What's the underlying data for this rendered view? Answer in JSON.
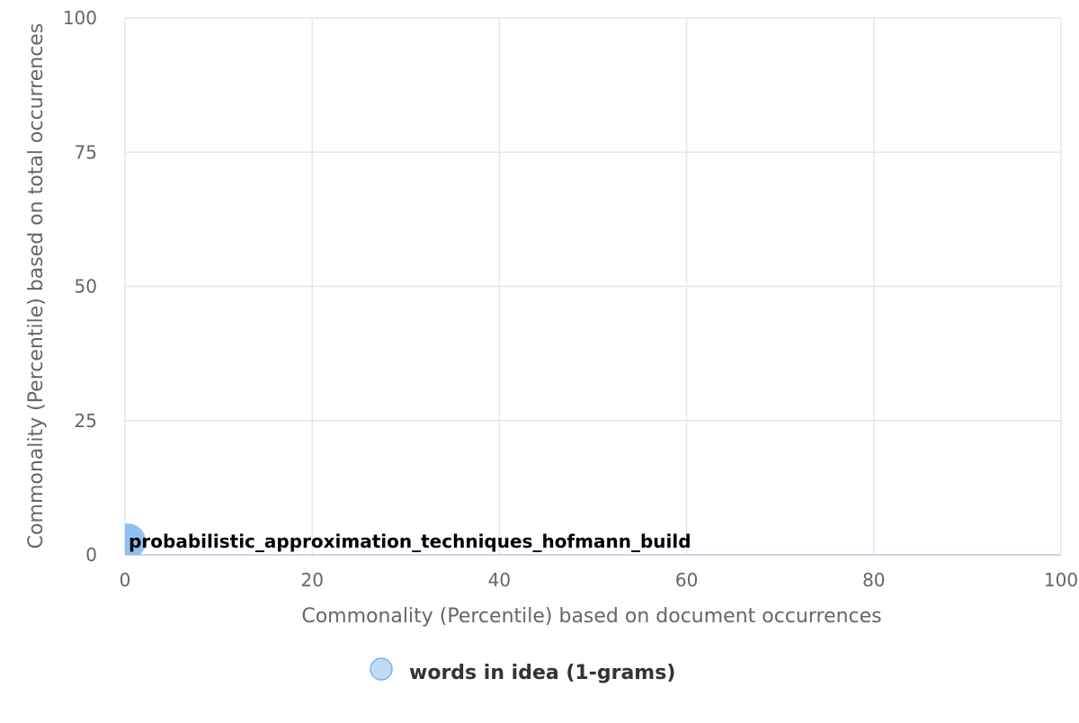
{
  "chart_data": {
    "type": "scatter",
    "xlabel": "Commonality (Percentile) based on document occurrences",
    "ylabel": "Commonality (Percentile) based on total occurrences",
    "xlim": [
      0,
      100
    ],
    "ylim": [
      0,
      100
    ],
    "x_ticks": [
      0,
      20,
      40,
      60,
      80,
      100
    ],
    "y_ticks": [
      0,
      25,
      50,
      75,
      100
    ],
    "grid": true,
    "legend_position": "bottom-center",
    "series": [
      {
        "name": "words in idea (1-grams)",
        "color": "#7cb5ec",
        "points": [
          {
            "x": 0.3,
            "y": 2.5,
            "label": "probabilistic_approximation_techniques_hofmann_build"
          }
        ]
      }
    ]
  }
}
